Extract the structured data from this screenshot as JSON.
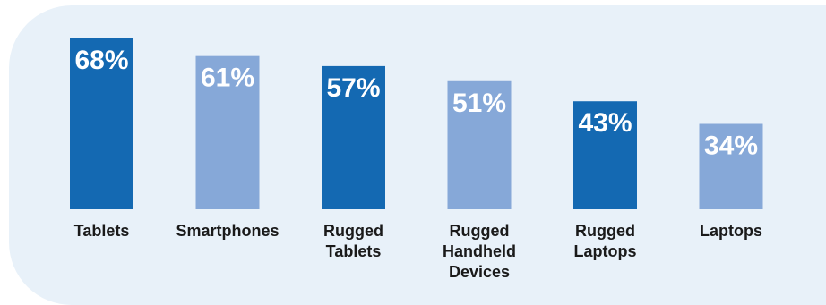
{
  "chart_data": {
    "type": "bar",
    "title": "",
    "xlabel": "",
    "ylabel": "",
    "ylim": [
      0,
      68
    ],
    "categories": [
      [
        "Tablets"
      ],
      [
        "Smartphones"
      ],
      [
        "Rugged",
        "Tablets"
      ],
      [
        "Rugged",
        "Handheld",
        "Devices"
      ],
      [
        "Rugged",
        "Laptops"
      ],
      [
        "Laptops"
      ]
    ],
    "values": [
      68,
      61,
      57,
      51,
      43,
      34
    ],
    "value_labels": [
      "68%",
      "61%",
      "57%",
      "51%",
      "43%",
      "34%"
    ],
    "colors": [
      "#1469b2",
      "#86a8d8",
      "#1469b2",
      "#86a8d8",
      "#1469b2",
      "#86a8d8"
    ],
    "background": "#e8f1f9"
  }
}
